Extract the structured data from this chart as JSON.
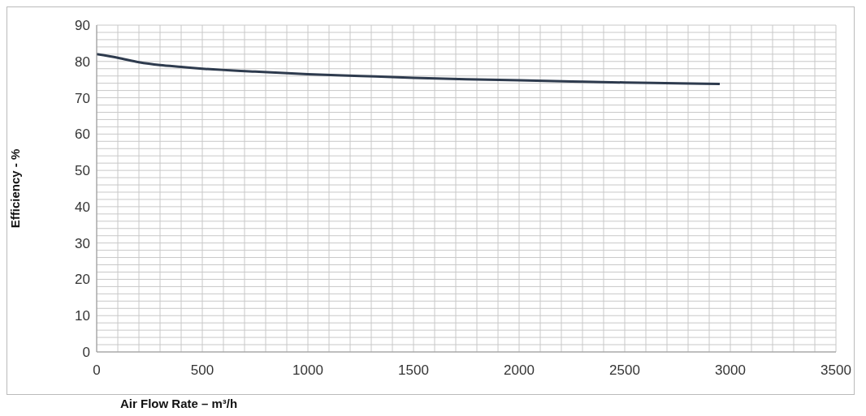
{
  "chart_data": {
    "type": "line",
    "xlabel": "Air Flow Rate – m³/h",
    "ylabel": "Efficiency - %",
    "x": [
      0,
      100,
      200,
      300,
      400,
      500,
      750,
      1000,
      1250,
      1500,
      1750,
      2000,
      2250,
      2500,
      2750,
      2950
    ],
    "series": [
      {
        "color": "#2e3b4e",
        "values": [
          82,
          81,
          79.8,
          79,
          78.5,
          78,
          77.2,
          76.5,
          76,
          75.5,
          75.1,
          74.8,
          74.5,
          74.2,
          74,
          73.8
        ]
      }
    ],
    "xlim": [
      0,
      3500
    ],
    "xticks": [
      0,
      {
        "value": 100,
        "label": null
      },
      {
        "value": 200,
        "label": null
      },
      {
        "value": 300,
        "label": null
      },
      {
        "value": 400,
        "label": null
      },
      500,
      {
        "value": 600,
        "label": null
      },
      {
        "value": 700,
        "label": null
      },
      {
        "value": 800,
        "label": null
      },
      {
        "value": 900,
        "label": null
      },
      1000,
      {
        "value": 1100,
        "label": null
      },
      {
        "value": 1200,
        "label": null
      },
      {
        "value": 1300,
        "label": null
      },
      {
        "value": 1400,
        "label": null
      },
      1500,
      {
        "value": 1600,
        "label": null
      },
      {
        "value": 1700,
        "label": null
      },
      {
        "value": 1800,
        "label": null
      },
      {
        "value": 1900,
        "label": null
      },
      2000,
      {
        "value": 2100,
        "label": null
      },
      {
        "value": 2200,
        "label": null
      },
      {
        "value": 2300,
        "label": null
      },
      {
        "value": 2400,
        "label": null
      },
      2500,
      {
        "value": 2600,
        "label": null
      },
      {
        "value": 2700,
        "label": null
      },
      {
        "value": 2800,
        "label": null
      },
      {
        "value": 2900,
        "label": null
      },
      3000,
      {
        "value": 3100,
        "label": null
      },
      {
        "value": 3200,
        "label": null
      },
      {
        "value": 3300,
        "label": null
      },
      {
        "value": 3400,
        "label": null
      },
      3500
    ],
    "ylim": [
      0,
      90
    ],
    "yticks": [
      0,
      {
        "value": 2,
        "label": null
      },
      {
        "value": 4,
        "label": null
      },
      {
        "value": 6,
        "label": null
      },
      {
        "value": 8,
        "label": null
      },
      10,
      {
        "value": 12,
        "label": null
      },
      {
        "value": 14,
        "label": null
      },
      {
        "value": 16,
        "label": null
      },
      {
        "value": 18,
        "label": null
      },
      20,
      {
        "value": 22,
        "label": null
      },
      {
        "value": 24,
        "label": null
      },
      {
        "value": 26,
        "label": null
      },
      {
        "value": 28,
        "label": null
      },
      30,
      {
        "value": 32,
        "label": null
      },
      {
        "value": 34,
        "label": null
      },
      {
        "value": 36,
        "label": null
      },
      {
        "value": 38,
        "label": null
      },
      40,
      {
        "value": 42,
        "label": null
      },
      {
        "value": 44,
        "label": null
      },
      {
        "value": 46,
        "label": null
      },
      {
        "value": 48,
        "label": null
      },
      50,
      {
        "value": 52,
        "label": null
      },
      {
        "value": 54,
        "label": null
      },
      {
        "value": 56,
        "label": null
      },
      {
        "value": 58,
        "label": null
      },
      60,
      {
        "value": 62,
        "label": null
      },
      {
        "value": 64,
        "label": null
      },
      {
        "value": 66,
        "label": null
      },
      {
        "value": 68,
        "label": null
      },
      70,
      {
        "value": 72,
        "label": null
      },
      {
        "value": 74,
        "label": null
      },
      {
        "value": 76,
        "label": null
      },
      {
        "value": 78,
        "label": null
      },
      80,
      {
        "value": 82,
        "label": null
      },
      {
        "value": 84,
        "label": null
      },
      {
        "value": 86,
        "label": null
      },
      {
        "value": 88,
        "label": null
      },
      90
    ],
    "grid": true,
    "marker": "none",
    "line_style": "solid"
  }
}
